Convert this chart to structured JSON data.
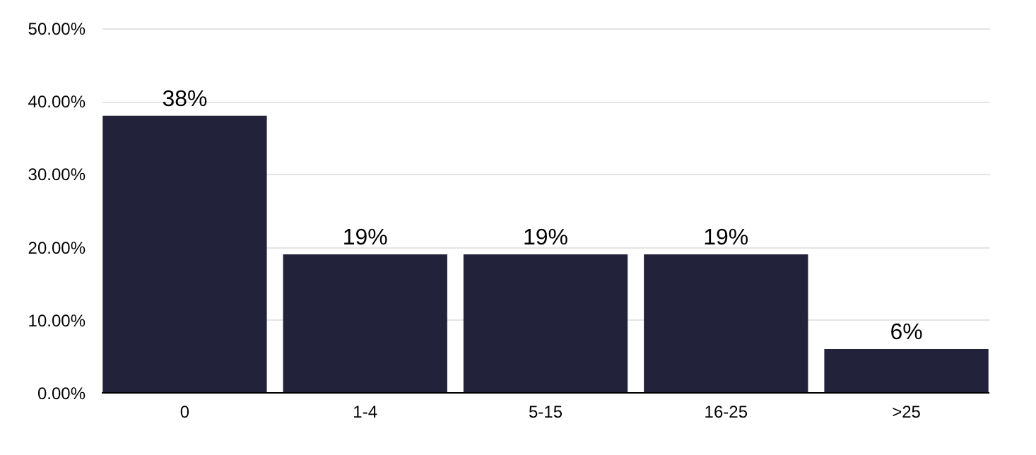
{
  "chart_data": {
    "type": "bar",
    "categories": [
      "0",
      "1-4",
      "5-15",
      "16-25",
      ">25"
    ],
    "values": [
      38,
      19,
      19,
      19,
      6
    ],
    "value_labels": [
      "38%",
      "19%",
      "19%",
      "19%",
      "6%"
    ],
    "color": "#22223a",
    "ylim": [
      0,
      50
    ],
    "yticks": [
      {
        "value": 0,
        "label": "0.00%"
      },
      {
        "value": 10,
        "label": "10.00%"
      },
      {
        "value": 20,
        "label": "20.00%"
      },
      {
        "value": 30,
        "label": "30.00%"
      },
      {
        "value": 40,
        "label": "40.00%"
      },
      {
        "value": 50,
        "label": "50.00%"
      }
    ],
    "grid": "y"
  }
}
